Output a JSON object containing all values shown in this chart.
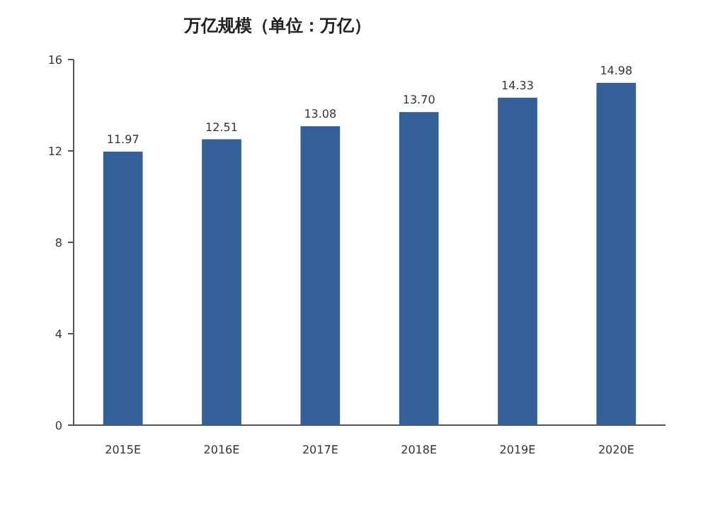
{
  "chart_data": {
    "type": "bar",
    "title": "万亿规模（单位：万亿）",
    "categories": [
      "2015E",
      "2016E",
      "2017E",
      "2018E",
      "2019E",
      "2020E"
    ],
    "values": [
      11.97,
      12.51,
      13.08,
      13.7,
      14.33,
      14.98
    ],
    "value_labels": [
      "11.97",
      "12.51",
      "13.08",
      "13.70",
      "14.33",
      "14.98"
    ],
    "color": "#34609a",
    "ylim": [
      0,
      16
    ],
    "yticks": [
      0,
      4,
      8,
      12,
      16
    ],
    "grid": false
  }
}
